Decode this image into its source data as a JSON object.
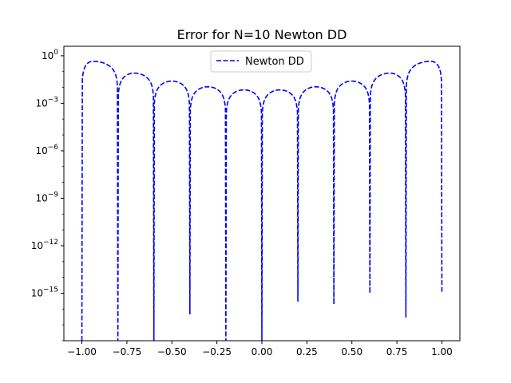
{
  "chart_data": {
    "type": "line",
    "title": "Error for N=10 Newton DD",
    "xlabel": "",
    "ylabel": "",
    "yscale": "log",
    "xlim": [
      -1.1,
      1.1
    ],
    "ylim_exp": [
      -18,
      0.6
    ],
    "x_ticks": [
      -1.0,
      -0.75,
      -0.5,
      -0.25,
      0.0,
      0.25,
      0.5,
      0.75,
      1.0
    ],
    "x_tick_labels": [
      "−1.00",
      "−0.75",
      "−0.50",
      "−0.25",
      "0.00",
      "0.25",
      "0.50",
      "0.75",
      "1.00"
    ],
    "y_ticks_exp": [
      0,
      -3,
      -6,
      -9,
      -12,
      -15
    ],
    "y_tick_labels": [
      {
        "base": "10",
        "exp": "0"
      },
      {
        "base": "10",
        "exp": "−3"
      },
      {
        "base": "10",
        "exp": "−6"
      },
      {
        "base": "10",
        "exp": "−9"
      },
      {
        "base": "10",
        "exp": "−12"
      },
      {
        "base": "10",
        "exp": "−15"
      }
    ],
    "series": [
      {
        "name": "Newton DD",
        "color": "#0000ff",
        "linestyle": "dashed",
        "nodes": [
          -1.0,
          -0.8,
          -0.6,
          -0.4,
          -0.2,
          0.0,
          0.2,
          0.4,
          0.6,
          0.8,
          1.0
        ],
        "node_min_log10": [
          -18,
          -18,
          -18,
          -16.3,
          -18,
          -18,
          -15.5,
          -15.7,
          -15.0,
          -16.5,
          -15.0
        ],
        "lobe_peaks": [
          {
            "x": -0.94,
            "y": 0.45
          },
          {
            "x": -0.71,
            "y": 0.08
          },
          {
            "x": -0.5,
            "y": 0.025
          },
          {
            "x": -0.3,
            "y": 0.011
          },
          {
            "x": -0.1,
            "y": 0.007
          },
          {
            "x": 0.1,
            "y": 0.007
          },
          {
            "x": 0.3,
            "y": 0.011
          },
          {
            "x": 0.5,
            "y": 0.025
          },
          {
            "x": 0.71,
            "y": 0.08
          },
          {
            "x": 0.94,
            "y": 0.45
          }
        ]
      }
    ],
    "legend": {
      "position": "upper-center",
      "entries": [
        "Newton DD"
      ]
    },
    "grid": false
  }
}
